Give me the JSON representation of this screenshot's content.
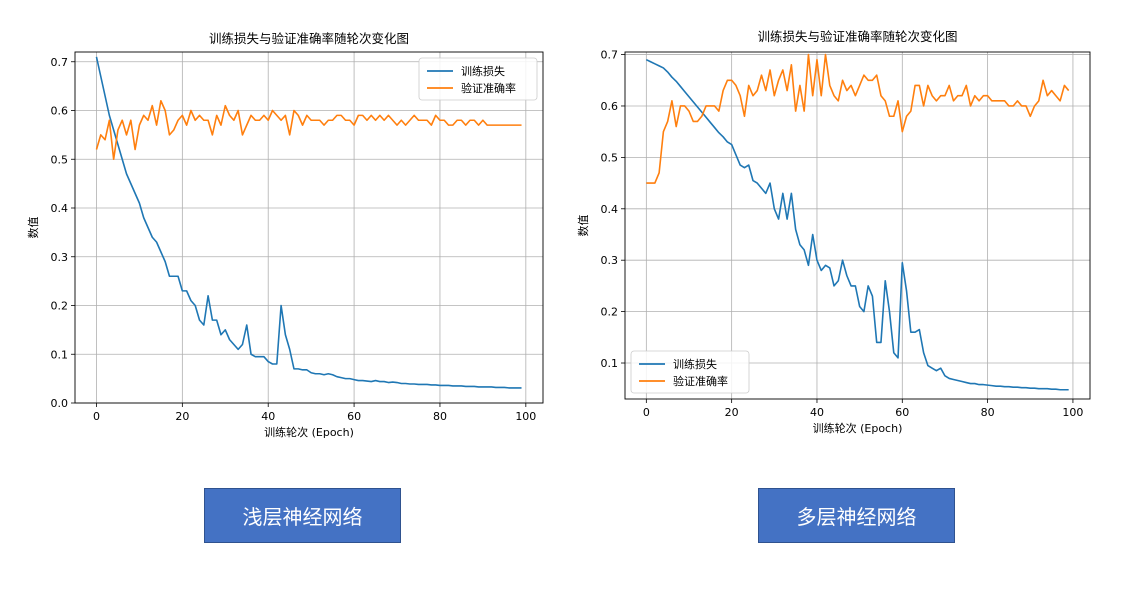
{
  "colors": {
    "loss": "#1f77b4",
    "acc": "#ff7f0e",
    "grid": "#b0b0b0",
    "label_box": "#4472c4"
  },
  "labels": {
    "left": "浅层神经网络",
    "right": "多层神经网络"
  },
  "chart_data": [
    {
      "type": "line",
      "title": "训练损失与验证准确率随轮次变化图",
      "xlabel": "训练轮次 (Epoch)",
      "ylabel": "数值",
      "xlim": [
        0,
        100
      ],
      "ylim": [
        0.0,
        0.72
      ],
      "xticks": [
        0,
        20,
        40,
        60,
        80,
        100
      ],
      "yticks": [
        0.0,
        0.1,
        0.2,
        0.3,
        0.4,
        0.5,
        0.6,
        0.7
      ],
      "grid": true,
      "legend": "top-right",
      "series": [
        {
          "name": "训练损失",
          "color": "#1f77b4",
          "values": [
            0.71,
            0.67,
            0.63,
            0.59,
            0.56,
            0.53,
            0.5,
            0.47,
            0.45,
            0.43,
            0.41,
            0.38,
            0.36,
            0.34,
            0.33,
            0.31,
            0.29,
            0.26,
            0.26,
            0.26,
            0.23,
            0.23,
            0.21,
            0.2,
            0.17,
            0.16,
            0.22,
            0.17,
            0.17,
            0.14,
            0.15,
            0.13,
            0.12,
            0.11,
            0.12,
            0.16,
            0.1,
            0.095,
            0.095,
            0.095,
            0.085,
            0.08,
            0.08,
            0.2,
            0.14,
            0.11,
            0.07,
            0.07,
            0.068,
            0.068,
            0.062,
            0.06,
            0.06,
            0.058,
            0.06,
            0.058,
            0.054,
            0.052,
            0.05,
            0.05,
            0.048,
            0.046,
            0.046,
            0.045,
            0.044,
            0.046,
            0.044,
            0.044,
            0.042,
            0.043,
            0.042,
            0.04,
            0.04,
            0.039,
            0.039,
            0.038,
            0.038,
            0.038,
            0.037,
            0.037,
            0.036,
            0.036,
            0.036,
            0.035,
            0.035,
            0.035,
            0.034,
            0.034,
            0.034,
            0.033,
            0.033,
            0.033,
            0.033,
            0.032,
            0.032,
            0.032,
            0.031,
            0.031,
            0.031,
            0.031
          ]
        },
        {
          "name": "验证准确率",
          "color": "#ff7f0e",
          "values": [
            0.52,
            0.55,
            0.54,
            0.58,
            0.5,
            0.56,
            0.58,
            0.55,
            0.58,
            0.52,
            0.57,
            0.59,
            0.58,
            0.61,
            0.57,
            0.62,
            0.6,
            0.55,
            0.56,
            0.58,
            0.59,
            0.57,
            0.6,
            0.58,
            0.59,
            0.58,
            0.58,
            0.55,
            0.59,
            0.57,
            0.61,
            0.59,
            0.58,
            0.6,
            0.55,
            0.57,
            0.59,
            0.58,
            0.58,
            0.59,
            0.58,
            0.6,
            0.59,
            0.58,
            0.59,
            0.55,
            0.6,
            0.59,
            0.57,
            0.59,
            0.58,
            0.58,
            0.58,
            0.57,
            0.58,
            0.58,
            0.59,
            0.59,
            0.58,
            0.58,
            0.57,
            0.59,
            0.59,
            0.58,
            0.59,
            0.58,
            0.59,
            0.58,
            0.59,
            0.58,
            0.57,
            0.58,
            0.57,
            0.58,
            0.59,
            0.58,
            0.58,
            0.58,
            0.57,
            0.59,
            0.58,
            0.58,
            0.57,
            0.57,
            0.58,
            0.58,
            0.57,
            0.58,
            0.58,
            0.57,
            0.58,
            0.57,
            0.57,
            0.57,
            0.57,
            0.57,
            0.57,
            0.57,
            0.57,
            0.57
          ]
        }
      ]
    },
    {
      "type": "line",
      "title": "训练损失与验证准确率随轮次变化图",
      "xlabel": "训练轮次 (Epoch)",
      "ylabel": "数值",
      "xlim": [
        0,
        100
      ],
      "ylim": [
        0.03,
        0.705
      ],
      "xticks": [
        0,
        20,
        40,
        60,
        80,
        100
      ],
      "yticks": [
        0.1,
        0.2,
        0.3,
        0.4,
        0.5,
        0.6,
        0.7
      ],
      "grid": true,
      "legend": "bottom-left",
      "series": [
        {
          "name": "训练损失",
          "color": "#1f77b4",
          "values": [
            0.69,
            0.686,
            0.682,
            0.678,
            0.674,
            0.666,
            0.656,
            0.648,
            0.638,
            0.628,
            0.618,
            0.608,
            0.598,
            0.588,
            0.578,
            0.568,
            0.558,
            0.548,
            0.54,
            0.53,
            0.525,
            0.505,
            0.485,
            0.48,
            0.485,
            0.455,
            0.45,
            0.44,
            0.43,
            0.45,
            0.4,
            0.38,
            0.43,
            0.38,
            0.43,
            0.36,
            0.33,
            0.32,
            0.29,
            0.35,
            0.3,
            0.28,
            0.29,
            0.285,
            0.25,
            0.26,
            0.3,
            0.27,
            0.25,
            0.25,
            0.21,
            0.2,
            0.25,
            0.23,
            0.14,
            0.14,
            0.26,
            0.2,
            0.12,
            0.11,
            0.295,
            0.24,
            0.16,
            0.16,
            0.165,
            0.12,
            0.095,
            0.09,
            0.085,
            0.09,
            0.075,
            0.07,
            0.068,
            0.066,
            0.064,
            0.062,
            0.06,
            0.06,
            0.058,
            0.058,
            0.057,
            0.056,
            0.055,
            0.055,
            0.054,
            0.054,
            0.053,
            0.053,
            0.052,
            0.052,
            0.051,
            0.051,
            0.05,
            0.05,
            0.05,
            0.049,
            0.049,
            0.048,
            0.048,
            0.048
          ]
        },
        {
          "name": "验证准确率",
          "color": "#ff7f0e",
          "values": [
            0.45,
            0.45,
            0.45,
            0.47,
            0.55,
            0.57,
            0.61,
            0.56,
            0.6,
            0.6,
            0.59,
            0.57,
            0.57,
            0.58,
            0.6,
            0.6,
            0.6,
            0.59,
            0.63,
            0.65,
            0.65,
            0.64,
            0.62,
            0.58,
            0.64,
            0.62,
            0.63,
            0.66,
            0.63,
            0.67,
            0.62,
            0.65,
            0.67,
            0.63,
            0.68,
            0.59,
            0.64,
            0.59,
            0.7,
            0.62,
            0.69,
            0.62,
            0.7,
            0.64,
            0.62,
            0.61,
            0.65,
            0.63,
            0.64,
            0.62,
            0.64,
            0.66,
            0.65,
            0.65,
            0.66,
            0.62,
            0.61,
            0.58,
            0.58,
            0.61,
            0.55,
            0.58,
            0.59,
            0.64,
            0.64,
            0.6,
            0.64,
            0.62,
            0.61,
            0.62,
            0.62,
            0.64,
            0.61,
            0.62,
            0.62,
            0.64,
            0.6,
            0.62,
            0.61,
            0.62,
            0.62,
            0.61,
            0.61,
            0.61,
            0.61,
            0.6,
            0.6,
            0.61,
            0.6,
            0.6,
            0.58,
            0.6,
            0.61,
            0.65,
            0.62,
            0.63,
            0.62,
            0.61,
            0.64,
            0.63
          ]
        }
      ]
    }
  ]
}
